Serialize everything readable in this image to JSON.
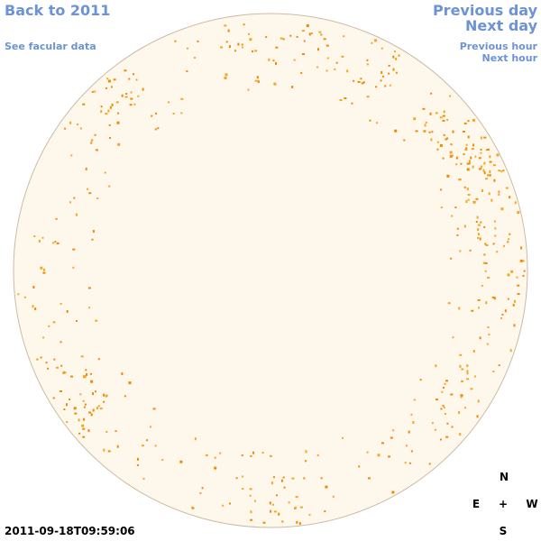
{
  "nav": {
    "back": "Back to 2011",
    "facular": "See facular data",
    "previous_day": "Previous day",
    "next_day": "Next day",
    "previous_hour": "Previous hour",
    "next_hour": "Next hour"
  },
  "timestamp": "2011-09-18T09:59:06",
  "compass": {
    "north": "N",
    "east": "E",
    "center": "+",
    "west": "W",
    "south": "S"
  }
}
